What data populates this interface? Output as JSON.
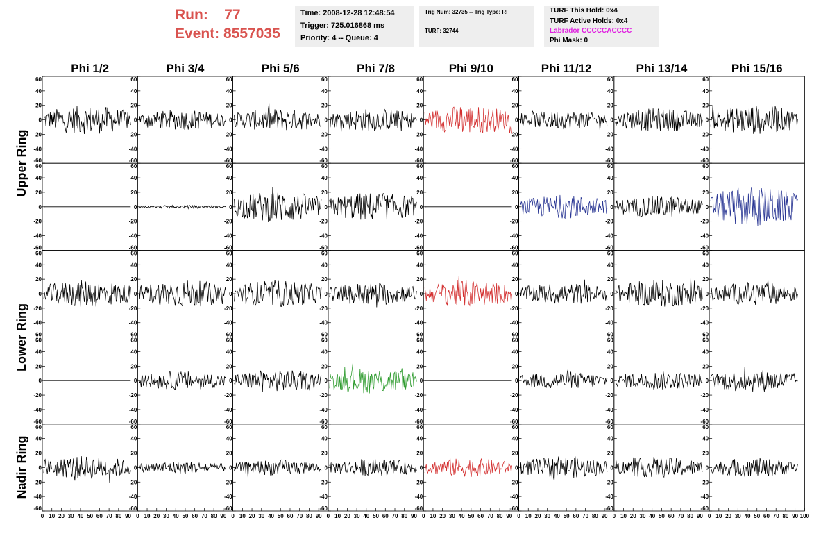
{
  "header": {
    "run_label": "Run:",
    "run_value": "77",
    "event_label": "Event:",
    "event_value": "8557035",
    "time": "Time: 2008-12-28 12:48:54",
    "trigger": "Trigger: 725.016868 ms",
    "priority": "Priority: 4 -- Queue: 4",
    "trig_num": "Trig Num: 32735 -- Trig Type: RF",
    "turf": "TURF: 32744",
    "turf_hold": "TURF This Hold: 0x4",
    "turf_active": "TURF Active Holds: 0x4",
    "labrador": "Labrador CCCCCACCCC",
    "phi_mask": "Phi Mask: 0"
  },
  "colors": {
    "run_text": "#d9534f",
    "labrador_text": "#e020e0",
    "trace_default": "#000000",
    "trace_red": "#d32f2f",
    "trace_blue": "#283593",
    "trace_green": "#2e9b2e",
    "info_bg": "#eeeeee"
  },
  "chart_data": {
    "type": "line",
    "column_labels": [
      "Phi 1/2",
      "Phi 3/4",
      "Phi 5/6",
      "Phi 7/8",
      "Phi 9/10",
      "Phi 11/12",
      "Phi 13/14",
      "Phi 15/16"
    ],
    "ring_labels": [
      "Upper Ring",
      "Lower Ring",
      "Nadir Ring"
    ],
    "ylim": [
      -60,
      60
    ],
    "xlim": [
      0,
      100
    ],
    "y_ticks": [
      "60",
      "40",
      "20",
      "0",
      "-20",
      "-40",
      "-60"
    ],
    "x_ticks": [
      "0",
      "10",
      "20",
      "30",
      "40",
      "50",
      "60",
      "70",
      "80",
      "90",
      "100"
    ],
    "rows": [
      [
        {
          "color": "black",
          "amplitude": 20
        },
        {
          "color": "black",
          "amplitude": 14
        },
        {
          "color": "black",
          "amplitude": 16
        },
        {
          "color": "black",
          "amplitude": 16
        },
        {
          "color": "red",
          "amplitude": 20
        },
        {
          "color": "black",
          "amplitude": 13
        },
        {
          "color": "black",
          "amplitude": 16
        },
        {
          "color": "black",
          "amplitude": 20
        }
      ],
      [
        {
          "color": "black",
          "amplitude": 0
        },
        {
          "color": "black",
          "amplitude": 2
        },
        {
          "color": "black",
          "amplitude": 22
        },
        {
          "color": "black",
          "amplitude": 20
        },
        {
          "color": "black",
          "amplitude": 0
        },
        {
          "color": "blue",
          "amplitude": 16
        },
        {
          "color": "black",
          "amplitude": 15
        },
        {
          "color": "blue",
          "amplitude": 28
        }
      ],
      [
        {
          "color": "black",
          "amplitude": 19
        },
        {
          "color": "black",
          "amplitude": 19
        },
        {
          "color": "black",
          "amplitude": 19
        },
        {
          "color": "black",
          "amplitude": 16
        },
        {
          "color": "red",
          "amplitude": 19
        },
        {
          "color": "black",
          "amplitude": 15
        },
        {
          "color": "black",
          "amplitude": 19
        },
        {
          "color": "black",
          "amplitude": 16
        }
      ],
      [
        {
          "color": "black",
          "amplitude": 0
        },
        {
          "color": "black",
          "amplitude": 13
        },
        {
          "color": "black",
          "amplitude": 15
        },
        {
          "color": "green",
          "amplitude": 18
        },
        {
          "color": "black",
          "amplitude": 0
        },
        {
          "color": "black",
          "amplitude": 12
        },
        {
          "color": "black",
          "amplitude": 13
        },
        {
          "color": "black",
          "amplitude": 16
        }
      ],
      [
        {
          "color": "black",
          "amplitude": 16
        },
        {
          "color": "black",
          "amplitude": 9
        },
        {
          "color": "black",
          "amplitude": 11
        },
        {
          "color": "black",
          "amplitude": 12
        },
        {
          "color": "red",
          "amplitude": 13
        },
        {
          "color": "black",
          "amplitude": 15
        },
        {
          "color": "black",
          "amplitude": 14
        },
        {
          "color": "black",
          "amplitude": 13
        }
      ]
    ]
  }
}
